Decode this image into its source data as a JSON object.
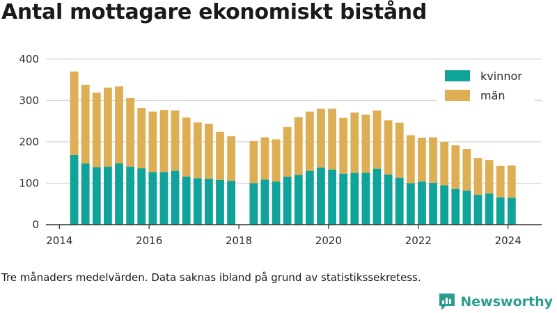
{
  "title": "Antal mottagare ekonomiskt bistånd",
  "footnote": "Tre månaders medelvärden. Data saknas ibland på grund av statistikssekretess.",
  "brand": {
    "name": "Newsworthy",
    "icon": "newsworthy-logo-icon",
    "color": "#2a9d8f"
  },
  "colors": {
    "kvinnor": "#0fa39a",
    "man": "#deae55",
    "grid": "#d9d9d9",
    "axis": "#333333"
  },
  "chart_data": {
    "type": "bar",
    "stacked": true,
    "x_ticks": [
      2014,
      2016,
      2018,
      2020,
      2022,
      2024
    ],
    "y_ticks": [
      0,
      100,
      200,
      300,
      400
    ],
    "ylim": [
      0,
      420
    ],
    "xlim": [
      2013.7,
      2024.75
    ],
    "grid": true,
    "legend": "top-right",
    "x": [
      2014.33,
      2014.58,
      2014.83,
      2015.08,
      2015.33,
      2015.58,
      2015.83,
      2016.08,
      2016.33,
      2016.58,
      2016.83,
      2017.08,
      2017.33,
      2017.58,
      2017.83,
      2018.33,
      2018.58,
      2018.83,
      2019.08,
      2019.33,
      2019.58,
      2019.83,
      2020.08,
      2020.33,
      2020.58,
      2020.83,
      2021.08,
      2021.33,
      2021.58,
      2021.83,
      2022.08,
      2022.33,
      2022.58,
      2022.83,
      2023.08,
      2023.33,
      2023.58,
      2023.83,
      2024.08
    ],
    "series": [
      {
        "name": "kvinnor",
        "values": [
          168,
          148,
          139,
          140,
          148,
          140,
          136,
          127,
          127,
          130,
          116,
          112,
          111,
          108,
          106,
          100,
          109,
          104,
          116,
          120,
          130,
          138,
          133,
          123,
          125,
          125,
          135,
          121,
          113,
          100,
          104,
          101,
          95,
          86,
          82,
          72,
          75,
          66,
          65
        ]
      },
      {
        "name": "män",
        "values": [
          202,
          190,
          180,
          191,
          186,
          166,
          146,
          146,
          150,
          146,
          143,
          135,
          133,
          116,
          108,
          102,
          102,
          102,
          120,
          140,
          143,
          142,
          147,
          135,
          146,
          141,
          141,
          131,
          133,
          116,
          106,
          110,
          105,
          106,
          101,
          89,
          81,
          76,
          78
        ]
      }
    ]
  }
}
